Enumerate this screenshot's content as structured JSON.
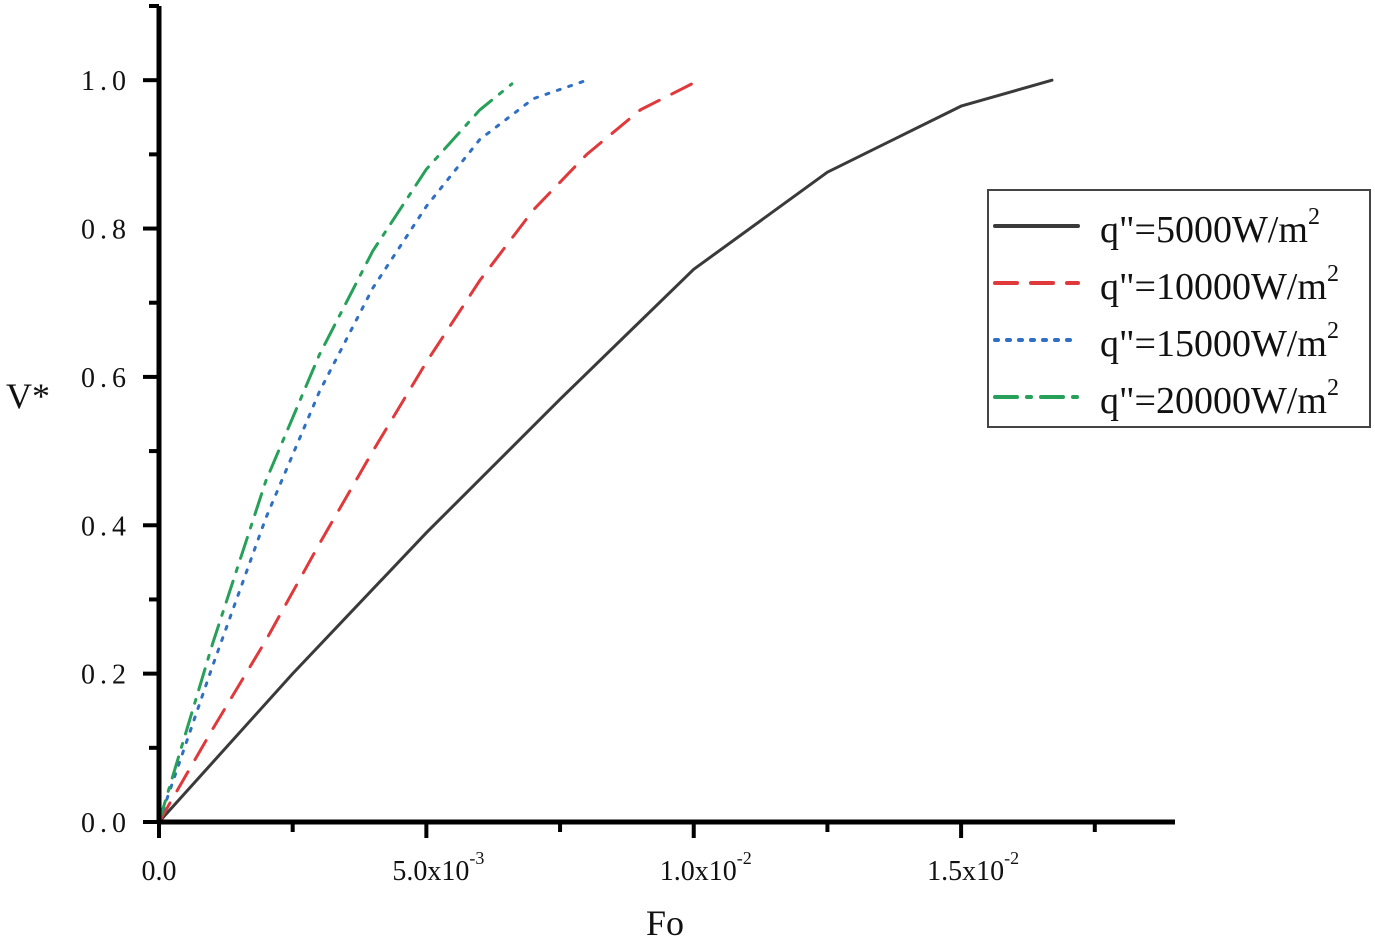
{
  "chart_data": {
    "type": "line",
    "title": "",
    "xlabel": "Fo",
    "ylabel": "V*",
    "xlim": [
      0,
      0.019
    ],
    "ylim": [
      0,
      1.1
    ],
    "grid": false,
    "legend_placement": "right",
    "x_ticks": [
      {
        "value": 0,
        "text": "0.0",
        "exp": ""
      },
      {
        "value": 0.005,
        "text": "5.0x10",
        "exp": "-3"
      },
      {
        "value": 0.01,
        "text": "1.0x10",
        "exp": "-2"
      },
      {
        "value": 0.015,
        "text": "1.5x10",
        "exp": "-2"
      }
    ],
    "x_minor_step": 0.0025,
    "y_ticks": [
      {
        "value": 0,
        "text": "0.0"
      },
      {
        "value": 0.2,
        "text": "0.2"
      },
      {
        "value": 0.4,
        "text": "0.4"
      },
      {
        "value": 0.6,
        "text": "0.6"
      },
      {
        "value": 0.8,
        "text": "0.8"
      },
      {
        "value": 1.0,
        "text": "1.0"
      }
    ],
    "y_minor_step": 0.1,
    "series": [
      {
        "name": "q\"=5000W/m",
        "sup": "2",
        "color": "#3a3a3a",
        "dash": "solid",
        "x": [
          0,
          0.0025,
          0.005,
          0.0075,
          0.01,
          0.0125,
          0.015,
          0.0167
        ],
        "y": [
          0,
          0.2,
          0.39,
          0.57,
          0.745,
          0.876,
          0.965,
          1.0
        ]
      },
      {
        "name": "q\"=10000W/m",
        "sup": "2",
        "color": "#e0393b",
        "dash": "dash",
        "x": [
          0,
          0.001,
          0.002,
          0.003,
          0.004,
          0.005,
          0.006,
          0.007,
          0.008,
          0.009,
          0.0101
        ],
        "y": [
          0,
          0.125,
          0.245,
          0.375,
          0.5,
          0.62,
          0.73,
          0.825,
          0.9,
          0.96,
          1.0
        ]
      },
      {
        "name": "q\"=15000W/m",
        "sup": "2",
        "color": "#2f6fc4",
        "dash": "dot",
        "x": [
          0,
          0.001,
          0.002,
          0.003,
          0.004,
          0.005,
          0.006,
          0.007,
          0.008
        ],
        "y": [
          0,
          0.21,
          0.41,
          0.58,
          0.72,
          0.83,
          0.92,
          0.975,
          1.0
        ]
      },
      {
        "name": "q\"=20000W/m",
        "sup": "2",
        "color": "#27a05a",
        "dash": "dashdot",
        "x": [
          0,
          0.001,
          0.002,
          0.003,
          0.004,
          0.005,
          0.006,
          0.0066
        ],
        "y": [
          0,
          0.24,
          0.46,
          0.63,
          0.77,
          0.88,
          0.96,
          0.995
        ]
      }
    ]
  }
}
